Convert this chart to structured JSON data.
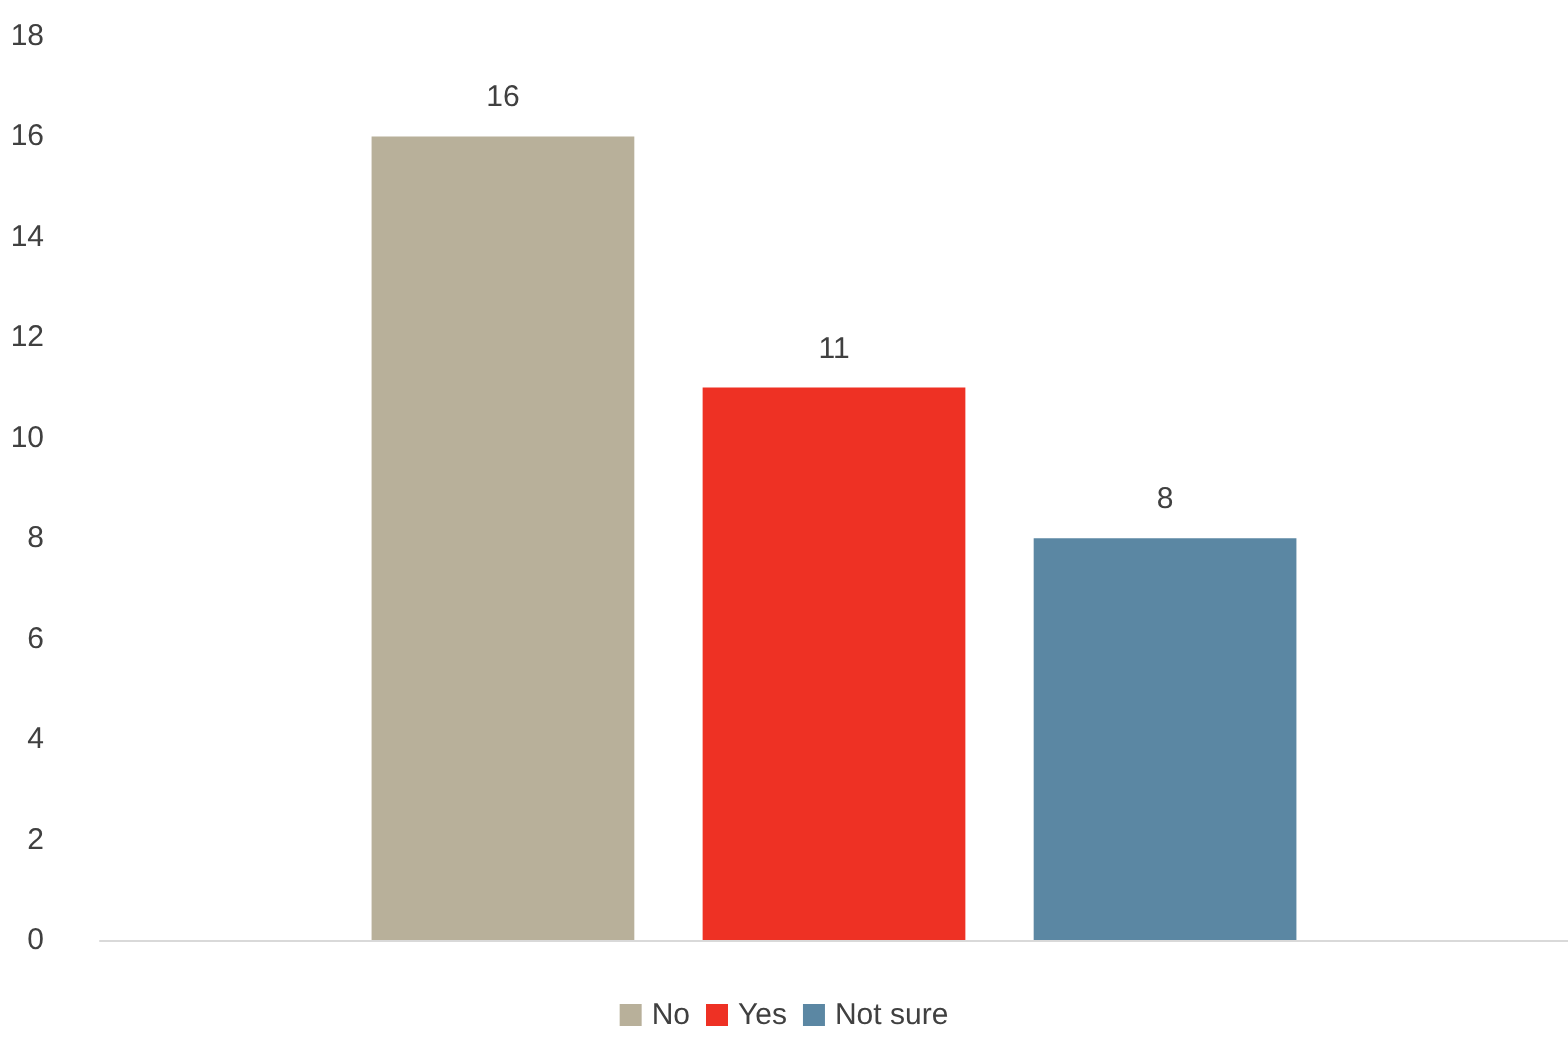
{
  "chart_data": {
    "type": "bar",
    "categories": [
      null
    ],
    "series": [
      {
        "name": "No",
        "color": "#b8b09a",
        "values": [
          16
        ]
      },
      {
        "name": "Yes",
        "color": "#ee3124",
        "values": [
          11
        ]
      },
      {
        "name": "Not sure",
        "color": "#5b87a3",
        "values": [
          8
        ]
      }
    ],
    "ylim": [
      0,
      18
    ],
    "yticks": [
      0,
      2,
      4,
      6,
      8,
      10,
      12,
      14,
      16,
      18
    ],
    "grid": false,
    "legend": "bottom",
    "data_labels": true
  }
}
